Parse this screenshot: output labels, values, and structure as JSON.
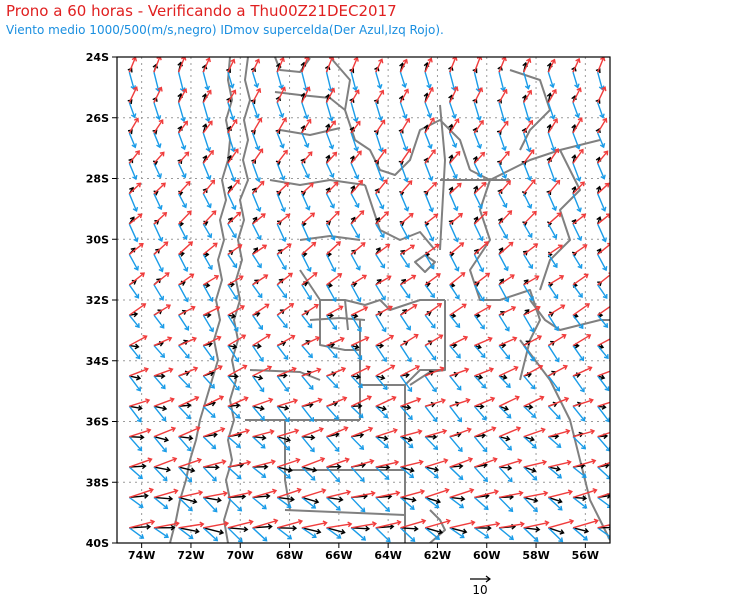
{
  "title": "Prono a 60 horas - Verificando a Thu00Z21DEC2017",
  "subtitle": "Viento medio 1000/500(m/s,negro) IDmov supercelda(Der Azul,Izq Rojo).",
  "colors": {
    "mean_wind": "#000000",
    "right_mover": "#1a9ce8",
    "left_mover": "#f03c3c",
    "grid": "#9a9a9a",
    "borders": "#808080"
  },
  "axes": {
    "lat_labels": [
      "24S",
      "26S",
      "28S",
      "30S",
      "32S",
      "34S",
      "36S",
      "38S",
      "40S"
    ],
    "lon_labels": [
      "74W",
      "72W",
      "70W",
      "68W",
      "66W",
      "64W",
      "62W",
      "60W",
      "58W",
      "56W"
    ]
  },
  "scale": {
    "label": "10"
  },
  "chart_data": {
    "type": "vector-map",
    "extent": {
      "lon_min": -75,
      "lon_max": -55,
      "lat_min": -40,
      "lat_max": -24
    },
    "units": "m/s",
    "reference_vector_ms": 10,
    "grid_step_deg": 1
  }
}
